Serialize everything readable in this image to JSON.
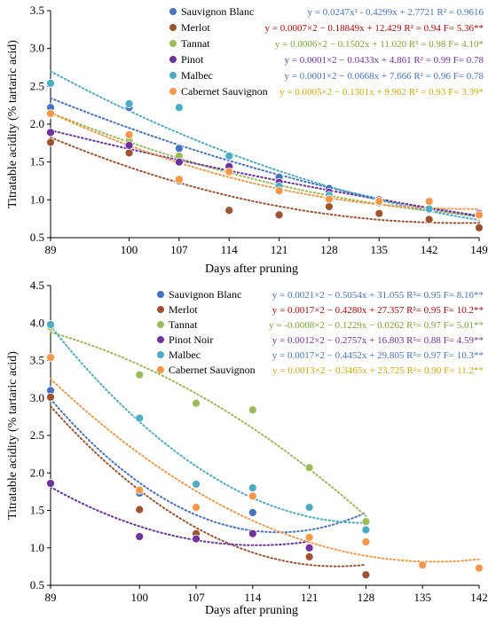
{
  "chart_data": [
    {
      "type": "scatter",
      "xlabel": "Days after pruning",
      "ylabel": "Titratable acidity (% tartaric acid)",
      "xticks": [
        89,
        100,
        107,
        114,
        121,
        128,
        135,
        142,
        149
      ],
      "yticks": [
        0.5,
        1.0,
        1.5,
        2.0,
        2.5,
        3.0,
        3.5
      ],
      "ylim": [
        0.5,
        3.5
      ],
      "legend_position": "top-right",
      "series": [
        {
          "name": "Sauvignon Blanc",
          "color": "#4472c4",
          "x": [
            89,
            100,
            107,
            114,
            121,
            128,
            135,
            142,
            149
          ],
          "y": [
            2.22,
            2.22,
            1.68,
            1.44,
            1.3,
            1.15,
            1.01,
            0.87,
            0.81
          ],
          "equation": "y = 0.0247x² - 0.4299x + 2.7721 R² = 0.9616",
          "eq_color": "#4472c4"
        },
        {
          "name": "Merlot",
          "color": "#a0522d",
          "x": [
            89,
            100,
            107,
            114,
            121,
            128,
            135,
            142,
            149
          ],
          "y": [
            1.76,
            1.62,
            1.25,
            0.86,
            0.8,
            0.91,
            0.82,
            0.74,
            0.63
          ],
          "equation": "y = 0.0007×2 − 0.18849x + 12.429 R² = 0.94 F= 5.36**",
          "eq_color": "#c00000"
        },
        {
          "name": "Tannat",
          "color": "#9bbb59",
          "x": [
            89,
            100,
            107,
            114,
            121,
            128,
            135,
            142,
            149
          ],
          "y": [
            2.13,
            1.78,
            1.58,
            1.38,
            1.15,
            1.02,
            0.96,
            0.87,
            0.79
          ],
          "equation": "y = 0.0006×2 − 0.1502x + 11.020 R² = 0.98 F= 4.10*",
          "eq_color": "#7aa32e"
        },
        {
          "name": "Pinot",
          "color": "#7030a0",
          "x": [
            89,
            100,
            107,
            114,
            121,
            128,
            135,
            142,
            149
          ],
          "y": [
            1.89,
            1.72,
            1.5,
            1.44,
            1.23,
            1.1,
            1.0,
            0.87,
            0.82
          ],
          "equation": "y = 0.0001×2 − 0.0433x + 4.861 R² = 0.99 F= 0.78",
          "eq_color": "#7030a0"
        },
        {
          "name": "Malbec",
          "color": "#4bacc6",
          "x": [
            89,
            100,
            107,
            114,
            121,
            128,
            135,
            142,
            149
          ],
          "y": [
            2.54,
            2.27,
            2.22,
            1.58,
            1.18,
            1.06,
            0.98,
            0.88,
            0.8
          ],
          "equation": "y = 0.0001×2 − 0.0668x + 7.666 R² = 0.96 F= 0.78",
          "eq_color": "#4472c4"
        },
        {
          "name": "Cabernet Sauvignon",
          "color": "#f79646",
          "x": [
            89,
            100,
            107,
            114,
            121,
            128,
            135,
            142,
            149
          ],
          "y": [
            2.14,
            1.86,
            1.27,
            1.37,
            1.12,
            1.01,
            0.98,
            0.98,
            0.8
          ],
          "equation": "y = 0.0005×2 − 0.1301x + 9.962 R² = 0.93 F= 3.39*",
          "eq_color": "#d4a800"
        }
      ]
    },
    {
      "type": "scatter",
      "xlabel": "Days after pruning",
      "ylabel": "Titratable acidity (% tartaric acid)",
      "xticks": [
        89,
        100,
        107,
        114,
        121,
        128,
        135,
        142
      ],
      "yticks": [
        0.5,
        1.0,
        1.5,
        2.0,
        2.5,
        3.0,
        3.5,
        4.0,
        4.5
      ],
      "ylim": [
        0.5,
        4.5
      ],
      "legend_position": "top-right",
      "series": [
        {
          "name": "Sauvignon Blanc",
          "color": "#4472c4",
          "x": [
            89,
            100,
            107,
            114,
            121,
            128
          ],
          "y": [
            3.1,
            1.73,
            1.15,
            1.47,
            1.54,
            1.24
          ],
          "equation": "y = 0.0021×2 − 0.5054x + 31.055 R²= 0.95 F= 8.16**",
          "eq_color": "#4472c4"
        },
        {
          "name": "Merlot",
          "color": "#a0522d",
          "x": [
            89,
            100,
            107,
            114,
            121,
            128
          ],
          "y": [
            3.01,
            1.51,
            1.19,
            1.18,
            0.88,
            0.64
          ],
          "equation": "y = 0.0017×2 − 0.4280x + 27.357 R²= 0.95 F= 10.2**",
          "eq_color": "#c00000"
        },
        {
          "name": "Tannat",
          "color": "#9bbb59",
          "x": [
            89,
            100,
            107,
            114,
            121,
            128
          ],
          "y": [
            3.95,
            3.31,
            2.93,
            2.84,
            2.07,
            1.35
          ],
          "equation": "y = -0.0008×2 − 0.1229x − 0.0262 R²= 0.97 F= 5.01**",
          "eq_color": "#7aa32e"
        },
        {
          "name": "Pinot Noir",
          "color": "#7030a0",
          "x": [
            89,
            100,
            107,
            114,
            121
          ],
          "y": [
            1.86,
            1.15,
            1.12,
            1.19,
            1.0
          ],
          "equation": "y = 0.0012×2 − 0.2757x + 16.803 R²= 0.88 F= 4.59**",
          "eq_color": "#7030a0"
        },
        {
          "name": "Malbec",
          "color": "#4bacc6",
          "x": [
            89,
            100,
            107,
            114,
            121,
            128
          ],
          "y": [
            3.98,
            2.73,
            1.85,
            1.8,
            1.54,
            1.24
          ],
          "equation": "y = 0.0017×2 − 0.4452x + 29.805 R²= 0.97 F= 10.3**",
          "eq_color": "#4472c4"
        },
        {
          "name": "Cabernet Sauvignon",
          "color": "#f79646",
          "x": [
            89,
            100,
            107,
            114,
            121,
            128,
            135,
            142
          ],
          "y": [
            3.54,
            1.77,
            1.54,
            1.69,
            1.14,
            1.08,
            0.77,
            0.73
          ],
          "equation": "y = 0.0013×2 − 0.3465x + 23.725 R²= 0.90 F= 11.2**",
          "eq_color": "#d4a800"
        }
      ]
    }
  ]
}
